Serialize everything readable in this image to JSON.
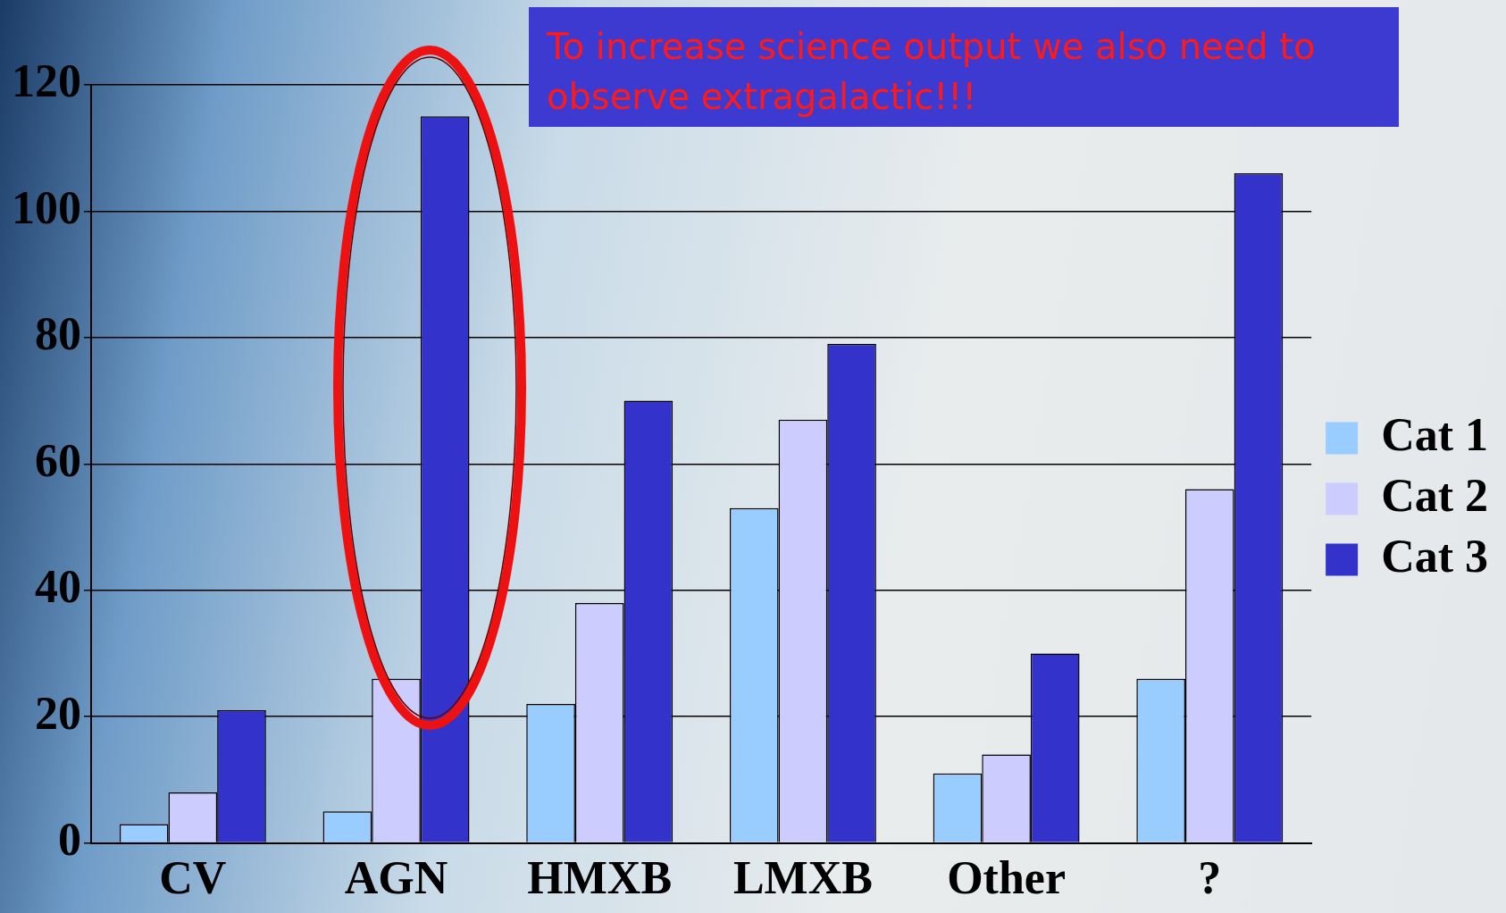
{
  "chart_data": {
    "type": "bar",
    "categories": [
      "CV",
      "AGN",
      "HMXB",
      "LMXB",
      "Other",
      "?"
    ],
    "series": [
      {
        "name": "Cat 1",
        "color": "#99ccff",
        "values": [
          3,
          5,
          22,
          53,
          11,
          26
        ]
      },
      {
        "name": "Cat 2",
        "color": "#ccccff",
        "values": [
          8,
          26,
          38,
          67,
          14,
          56
        ]
      },
      {
        "name": "Cat 3",
        "color": "#3333cc",
        "values": [
          21,
          115,
          70,
          79,
          30,
          106
        ]
      }
    ],
    "ylim": [
      0,
      120
    ],
    "yticks": [
      0,
      20,
      40,
      60,
      80,
      100,
      120
    ],
    "grid": "y",
    "legend": "right",
    "annotations": [
      "To increase science output we also need to observe extragalactic!!!"
    ]
  }
}
